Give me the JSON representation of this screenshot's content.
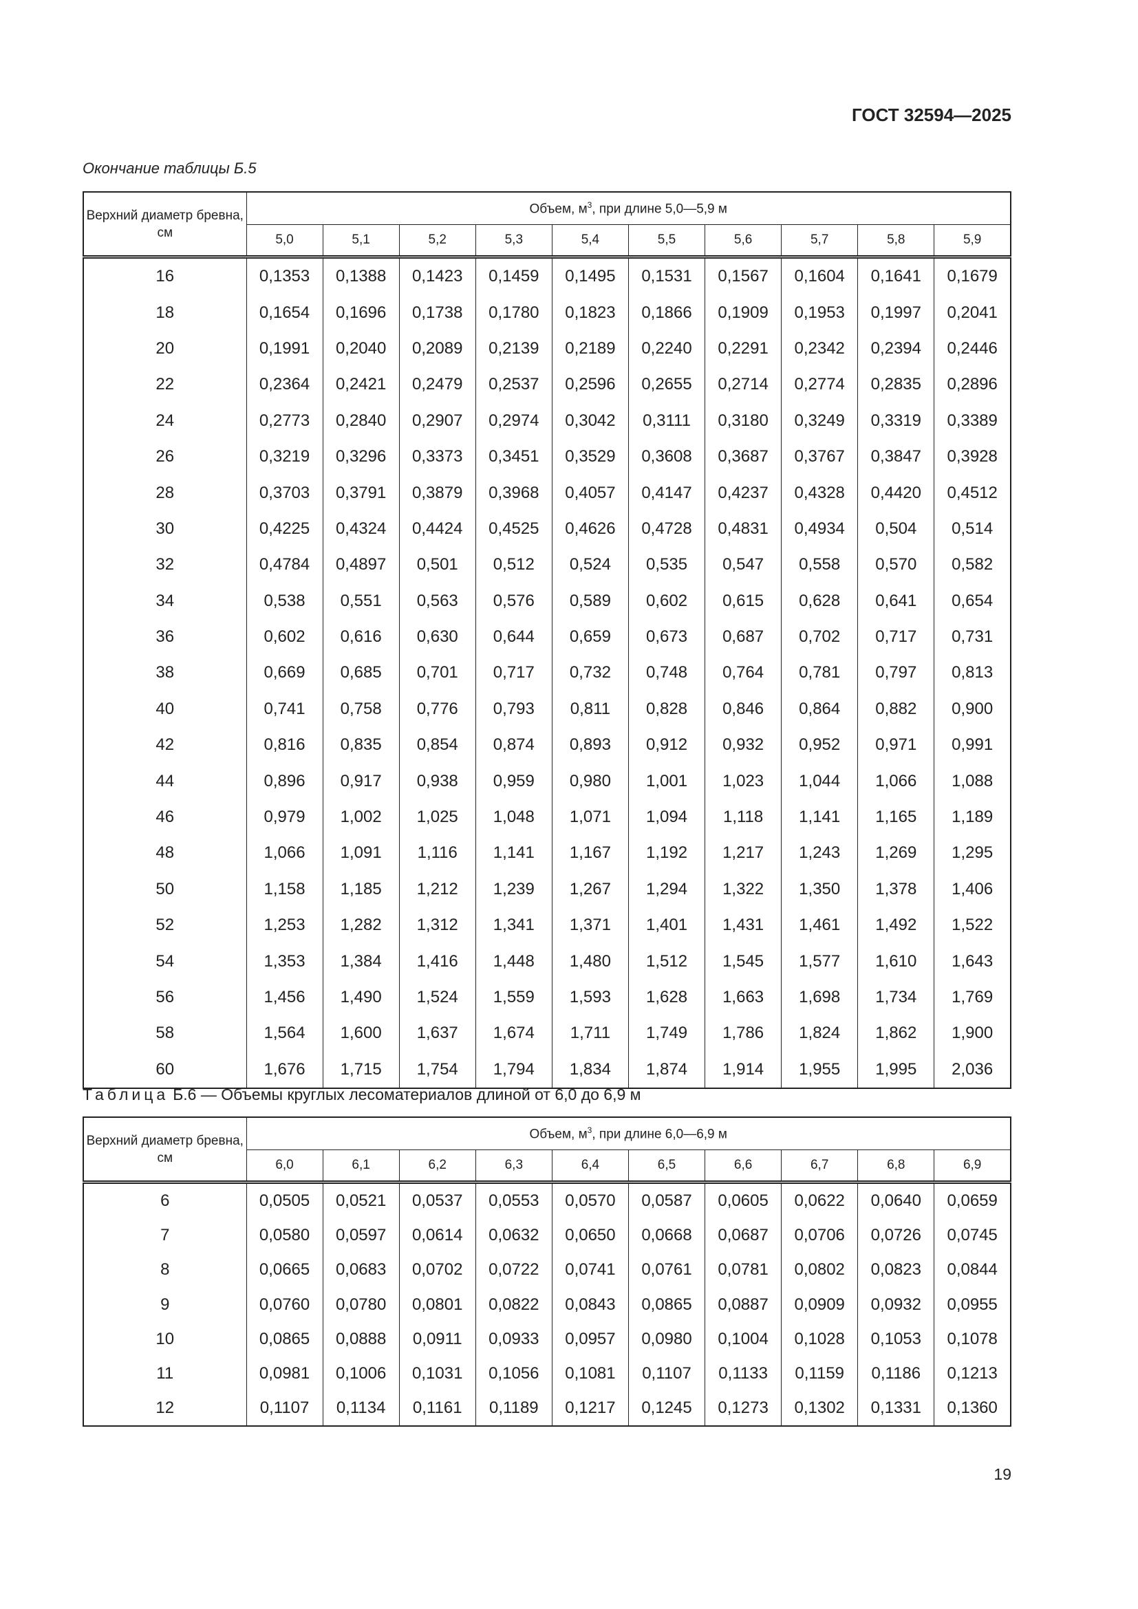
{
  "header": {
    "doc_id": "ГОСТ 32594—2025"
  },
  "table1": {
    "continuation_caption": "Окончание таблицы Б.5",
    "diameter_header": "Верхний диаметр бревна, см",
    "group_header": {
      "prefix": "Объем, м",
      "sup": "3",
      "suffix": ", при длине 5,0—5,9 м"
    },
    "lengths": [
      "5,0",
      "5,1",
      "5,2",
      "5,3",
      "5,4",
      "5,5",
      "5,6",
      "5,7",
      "5,8",
      "5,9"
    ],
    "rows": [
      {
        "d": "16",
        "v": [
          "0,1353",
          "0,1388",
          "0,1423",
          "0,1459",
          "0,1495",
          "0,1531",
          "0,1567",
          "0,1604",
          "0,1641",
          "0,1679"
        ]
      },
      {
        "d": "18",
        "v": [
          "0,1654",
          "0,1696",
          "0,1738",
          "0,1780",
          "0,1823",
          "0,1866",
          "0,1909",
          "0,1953",
          "0,1997",
          "0,2041"
        ]
      },
      {
        "d": "20",
        "v": [
          "0,1991",
          "0,2040",
          "0,2089",
          "0,2139",
          "0,2189",
          "0,2240",
          "0,2291",
          "0,2342",
          "0,2394",
          "0,2446"
        ]
      },
      {
        "d": "22",
        "v": [
          "0,2364",
          "0,2421",
          "0,2479",
          "0,2537",
          "0,2596",
          "0,2655",
          "0,2714",
          "0,2774",
          "0,2835",
          "0,2896"
        ]
      },
      {
        "d": "24",
        "v": [
          "0,2773",
          "0,2840",
          "0,2907",
          "0,2974",
          "0,3042",
          "0,3111",
          "0,3180",
          "0,3249",
          "0,3319",
          "0,3389"
        ]
      },
      {
        "d": "26",
        "v": [
          "0,3219",
          "0,3296",
          "0,3373",
          "0,3451",
          "0,3529",
          "0,3608",
          "0,3687",
          "0,3767",
          "0,3847",
          "0,3928"
        ]
      },
      {
        "d": "28",
        "v": [
          "0,3703",
          "0,3791",
          "0,3879",
          "0,3968",
          "0,4057",
          "0,4147",
          "0,4237",
          "0,4328",
          "0,4420",
          "0,4512"
        ]
      },
      {
        "d": "30",
        "v": [
          "0,4225",
          "0,4324",
          "0,4424",
          "0,4525",
          "0,4626",
          "0,4728",
          "0,4831",
          "0,4934",
          "0,504",
          "0,514"
        ]
      },
      {
        "d": "32",
        "v": [
          "0,4784",
          "0,4897",
          "0,501",
          "0,512",
          "0,524",
          "0,535",
          "0,547",
          "0,558",
          "0,570",
          "0,582"
        ]
      },
      {
        "d": "34",
        "v": [
          "0,538",
          "0,551",
          "0,563",
          "0,576",
          "0,589",
          "0,602",
          "0,615",
          "0,628",
          "0,641",
          "0,654"
        ]
      },
      {
        "d": "36",
        "v": [
          "0,602",
          "0,616",
          "0,630",
          "0,644",
          "0,659",
          "0,673",
          "0,687",
          "0,702",
          "0,717",
          "0,731"
        ]
      },
      {
        "d": "38",
        "v": [
          "0,669",
          "0,685",
          "0,701",
          "0,717",
          "0,732",
          "0,748",
          "0,764",
          "0,781",
          "0,797",
          "0,813"
        ]
      },
      {
        "d": "40",
        "v": [
          "0,741",
          "0,758",
          "0,776",
          "0,793",
          "0,811",
          "0,828",
          "0,846",
          "0,864",
          "0,882",
          "0,900"
        ]
      },
      {
        "d": "42",
        "v": [
          "0,816",
          "0,835",
          "0,854",
          "0,874",
          "0,893",
          "0,912",
          "0,932",
          "0,952",
          "0,971",
          "0,991"
        ]
      },
      {
        "d": "44",
        "v": [
          "0,896",
          "0,917",
          "0,938",
          "0,959",
          "0,980",
          "1,001",
          "1,023",
          "1,044",
          "1,066",
          "1,088"
        ]
      },
      {
        "d": "46",
        "v": [
          "0,979",
          "1,002",
          "1,025",
          "1,048",
          "1,071",
          "1,094",
          "1,118",
          "1,141",
          "1,165",
          "1,189"
        ]
      },
      {
        "d": "48",
        "v": [
          "1,066",
          "1,091",
          "1,116",
          "1,141",
          "1,167",
          "1,192",
          "1,217",
          "1,243",
          "1,269",
          "1,295"
        ]
      },
      {
        "d": "50",
        "v": [
          "1,158",
          "1,185",
          "1,212",
          "1,239",
          "1,267",
          "1,294",
          "1,322",
          "1,350",
          "1,378",
          "1,406"
        ]
      },
      {
        "d": "52",
        "v": [
          "1,253",
          "1,282",
          "1,312",
          "1,341",
          "1,371",
          "1,401",
          "1,431",
          "1,461",
          "1,492",
          "1,522"
        ]
      },
      {
        "d": "54",
        "v": [
          "1,353",
          "1,384",
          "1,416",
          "1,448",
          "1,480",
          "1,512",
          "1,545",
          "1,577",
          "1,610",
          "1,643"
        ]
      },
      {
        "d": "56",
        "v": [
          "1,456",
          "1,490",
          "1,524",
          "1,559",
          "1,593",
          "1,628",
          "1,663",
          "1,698",
          "1,734",
          "1,769"
        ]
      },
      {
        "d": "58",
        "v": [
          "1,564",
          "1,600",
          "1,637",
          "1,674",
          "1,711",
          "1,749",
          "1,786",
          "1,824",
          "1,862",
          "1,900"
        ]
      },
      {
        "d": "60",
        "v": [
          "1,676",
          "1,715",
          "1,754",
          "1,794",
          "1,834",
          "1,874",
          "1,914",
          "1,955",
          "1,995",
          "2,036"
        ]
      }
    ]
  },
  "table2": {
    "caption_label": "Таблица",
    "caption_text": "Б.6 — Объемы круглых лесоматериалов длиной от 6,0 до 6,9 м",
    "diameter_header": "Верхний диаметр бревна, см",
    "group_header": {
      "prefix": "Объем, м",
      "sup": "3",
      "suffix": ", при длине 6,0—6,9 м"
    },
    "lengths": [
      "6,0",
      "6,1",
      "6,2",
      "6,3",
      "6,4",
      "6,5",
      "6,6",
      "6,7",
      "6,8",
      "6,9"
    ],
    "rows": [
      {
        "d": "6",
        "v": [
          "0,0505",
          "0,0521",
          "0,0537",
          "0,0553",
          "0,0570",
          "0,0587",
          "0,0605",
          "0,0622",
          "0,0640",
          "0,0659"
        ]
      },
      {
        "d": "7",
        "v": [
          "0,0580",
          "0,0597",
          "0,0614",
          "0,0632",
          "0,0650",
          "0,0668",
          "0,0687",
          "0,0706",
          "0,0726",
          "0,0745"
        ]
      },
      {
        "d": "8",
        "v": [
          "0,0665",
          "0,0683",
          "0,0702",
          "0,0722",
          "0,0741",
          "0,0761",
          "0,0781",
          "0,0802",
          "0,0823",
          "0,0844"
        ]
      },
      {
        "d": "9",
        "v": [
          "0,0760",
          "0,0780",
          "0,0801",
          "0,0822",
          "0,0843",
          "0,0865",
          "0,0887",
          "0,0909",
          "0,0932",
          "0,0955"
        ]
      },
      {
        "d": "10",
        "v": [
          "0,0865",
          "0,0888",
          "0,0911",
          "0,0933",
          "0,0957",
          "0,0980",
          "0,1004",
          "0,1028",
          "0,1053",
          "0,1078"
        ]
      },
      {
        "d": "11",
        "v": [
          "0,0981",
          "0,1006",
          "0,1031",
          "0,1056",
          "0,1081",
          "0,1107",
          "0,1133",
          "0,1159",
          "0,1186",
          "0,1213"
        ]
      },
      {
        "d": "12",
        "v": [
          "0,1107",
          "0,1134",
          "0,1161",
          "0,1189",
          "0,1217",
          "0,1245",
          "0,1273",
          "0,1302",
          "0,1331",
          "0,1360"
        ]
      }
    ]
  },
  "footer": {
    "page_number": "19"
  }
}
